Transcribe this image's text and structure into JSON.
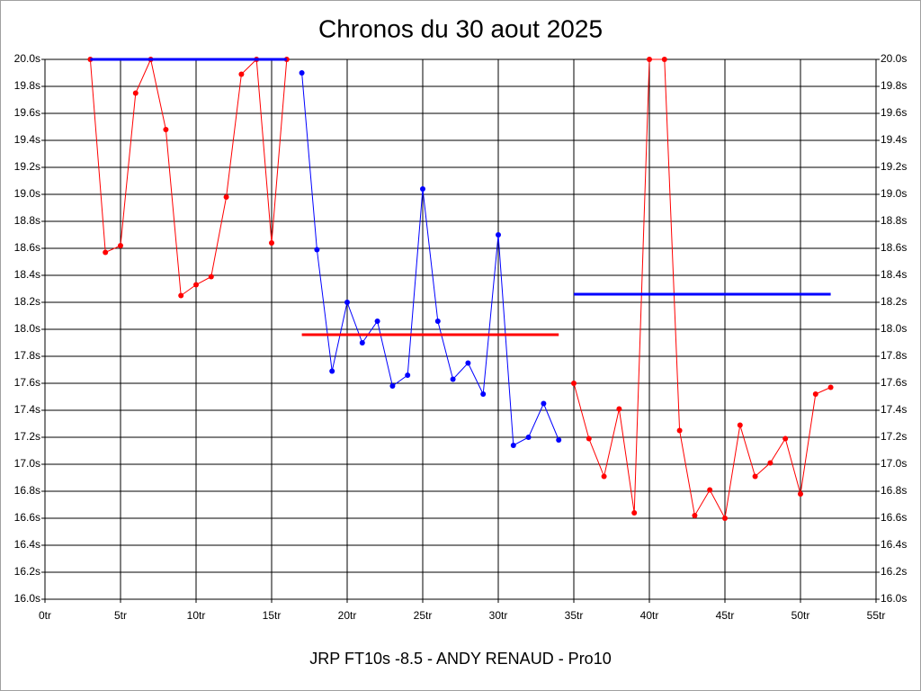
{
  "chart_data": {
    "type": "line",
    "title": "Chronos du 30 aout 2025",
    "xlabel": "JRP FT10s -8.5 - ANDY RENAUD - Pro10",
    "xlim": [
      0,
      55
    ],
    "xticks": [
      {
        "value": 0,
        "label": "0tr"
      },
      {
        "value": 5,
        "label": "5tr"
      },
      {
        "value": 10,
        "label": "10tr"
      },
      {
        "value": 15,
        "label": "15tr"
      },
      {
        "value": 20,
        "label": "20tr"
      },
      {
        "value": 25,
        "label": "25tr"
      },
      {
        "value": 30,
        "label": "30tr"
      },
      {
        "value": 35,
        "label": "35tr"
      },
      {
        "value": 40,
        "label": "40tr"
      },
      {
        "value": 45,
        "label": "45tr"
      },
      {
        "value": 50,
        "label": "50tr"
      },
      {
        "value": 55,
        "label": "55tr"
      }
    ],
    "ylim": [
      16,
      20
    ],
    "yticks": [
      {
        "value": 16.0,
        "label": "16.0s"
      },
      {
        "value": 16.2,
        "label": "16.2s"
      },
      {
        "value": 16.4,
        "label": "16.4s"
      },
      {
        "value": 16.6,
        "label": "16.6s"
      },
      {
        "value": 16.8,
        "label": "16.8s"
      },
      {
        "value": 17.0,
        "label": "17.0s"
      },
      {
        "value": 17.2,
        "label": "17.2s"
      },
      {
        "value": 17.4,
        "label": "17.4s"
      },
      {
        "value": 17.6,
        "label": "17.6s"
      },
      {
        "value": 17.8,
        "label": "17.8s"
      },
      {
        "value": 18.0,
        "label": "18.0s"
      },
      {
        "value": 18.2,
        "label": "18.2s"
      },
      {
        "value": 18.4,
        "label": "18.4s"
      },
      {
        "value": 18.6,
        "label": "18.6s"
      },
      {
        "value": 18.8,
        "label": "18.8s"
      },
      {
        "value": 19.0,
        "label": "19.0s"
      },
      {
        "value": 19.2,
        "label": "19.2s"
      },
      {
        "value": 19.4,
        "label": "19.4s"
      },
      {
        "value": 19.6,
        "label": "19.6s"
      },
      {
        "value": 19.8,
        "label": "19.8s"
      },
      {
        "value": 20.0,
        "label": "20.0s"
      }
    ],
    "grid": true,
    "series": [
      {
        "color": "#ff0000",
        "markers": true,
        "line_width": 1,
        "x": [
          3,
          4,
          5,
          6,
          7,
          8,
          9,
          10,
          11,
          12,
          13,
          14,
          15,
          16
        ],
        "values": [
          20.0,
          18.57,
          18.62,
          19.75,
          20.0,
          19.48,
          18.25,
          18.33,
          18.39,
          18.98,
          19.89,
          20.0,
          18.64,
          20.0
        ]
      },
      {
        "color": "#0000ff",
        "markers": true,
        "line_width": 1,
        "x": [
          17,
          18,
          19,
          20,
          21,
          22,
          23,
          24,
          25,
          26,
          27,
          28,
          29,
          30,
          31,
          32,
          33,
          34
        ],
        "values": [
          19.9,
          18.59,
          17.69,
          18.2,
          17.9,
          18.06,
          17.58,
          17.66,
          19.04,
          18.06,
          17.63,
          17.75,
          17.52,
          18.7,
          17.14,
          17.2,
          17.45,
          17.18
        ]
      },
      {
        "color": "#ff0000",
        "markers": true,
        "line_width": 1,
        "x": [
          35,
          36,
          37,
          38,
          39,
          40,
          41,
          42,
          43,
          44,
          45,
          46,
          47,
          48,
          49,
          50,
          51,
          52
        ],
        "values": [
          17.6,
          17.19,
          16.91,
          17.41,
          16.64,
          20.0,
          20.0,
          17.25,
          16.62,
          16.81,
          16.6,
          17.29,
          16.91,
          17.01,
          17.19,
          16.78,
          17.52,
          17.57
        ]
      },
      {
        "color": "#0000ff",
        "markers": false,
        "line_width": 3,
        "x": [
          3,
          16
        ],
        "values": [
          20.0,
          20.0
        ]
      },
      {
        "color": "#ff0000",
        "markers": false,
        "line_width": 3,
        "x": [
          17,
          34
        ],
        "values": [
          17.96,
          17.96
        ]
      },
      {
        "color": "#0000ff",
        "markers": false,
        "line_width": 3,
        "x": [
          35,
          52
        ],
        "values": [
          18.26,
          18.26
        ]
      }
    ]
  }
}
